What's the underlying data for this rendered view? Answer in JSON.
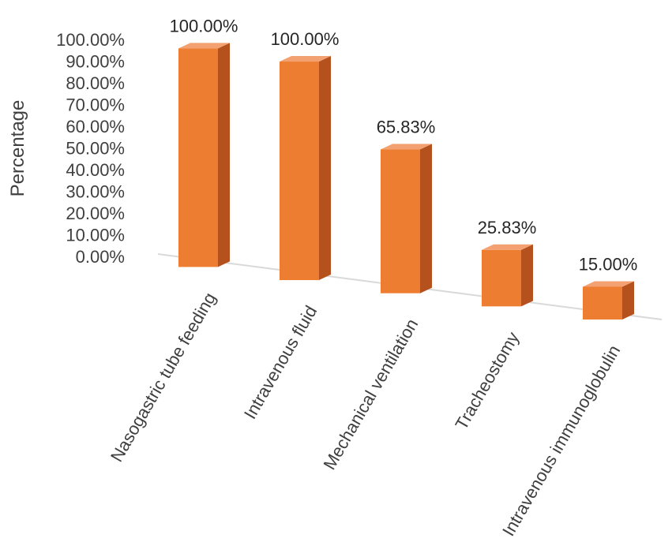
{
  "chart_data": {
    "type": "bar",
    "style": "3d-column",
    "ylabel": "Percentage",
    "xlabel": "",
    "title": "",
    "ylim": [
      0,
      100
    ],
    "y_ticks": [
      "100.00%",
      "90.00%",
      "80.00%",
      "70.00%",
      "60.00%",
      "50.00%",
      "40.00%",
      "30.00%",
      "20.00%",
      "10.00%",
      "0.00%"
    ],
    "categories": [
      "Nasogastric tube feeding",
      "Intravenous fluid",
      "Mechanical ventilation",
      "Tracheostomy",
      "Intravenous immunoglobulin"
    ],
    "values": [
      100.0,
      100.0,
      65.83,
      25.83,
      15.0
    ],
    "data_labels": [
      "100.00%",
      "100.00%",
      "65.83%",
      "25.83%",
      "15.00%"
    ],
    "grid": false,
    "legend": "none",
    "colors": {
      "front": "#ED7D31",
      "side": "#B4511D",
      "top": "#F4A171",
      "axis": "#D9D9D9"
    }
  }
}
